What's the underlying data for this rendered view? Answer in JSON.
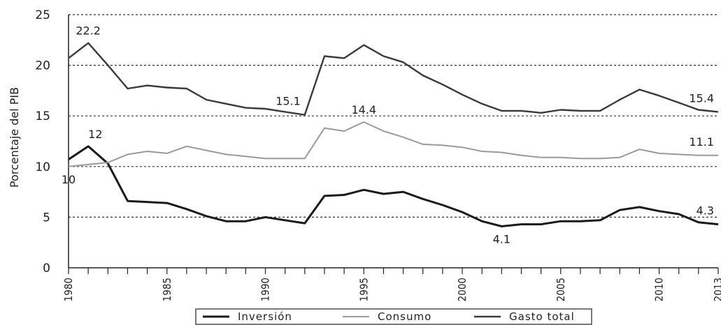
{
  "chart_data": {
    "type": "line",
    "xlabel": "",
    "ylabel": "Porcentaje del PIB",
    "ylim": [
      0,
      25
    ],
    "xlim": [
      1980,
      2013
    ],
    "yticks": [
      0,
      5,
      10,
      15,
      20,
      25
    ],
    "xticks": [
      1980,
      1985,
      1990,
      1995,
      2000,
      2005,
      2010,
      2013
    ],
    "grid": "horizontal dashed",
    "legend_position": "bottom",
    "x": [
      1980,
      1981,
      1982,
      1983,
      1984,
      1985,
      1986,
      1987,
      1988,
      1989,
      1990,
      1991,
      1992,
      1993,
      1994,
      1995,
      1996,
      1997,
      1998,
      1999,
      2000,
      2001,
      2002,
      2003,
      2004,
      2005,
      2006,
      2007,
      2008,
      2009,
      2010,
      2011,
      2012,
      2013
    ],
    "series": [
      {
        "name": "Inversión",
        "color": "#1a1a1a",
        "values": [
          10.7,
          12.0,
          10.3,
          6.6,
          6.5,
          6.4,
          5.8,
          5.1,
          4.6,
          4.6,
          5.0,
          4.7,
          4.4,
          7.1,
          7.2,
          7.7,
          7.3,
          7.5,
          6.8,
          6.2,
          5.5,
          4.6,
          4.1,
          4.3,
          4.3,
          4.6,
          4.6,
          4.7,
          5.7,
          6.0,
          5.6,
          5.3,
          4.5,
          4.3
        ]
      },
      {
        "name": "Consumo",
        "color": "#9a9a9a",
        "values": [
          10.0,
          10.2,
          10.4,
          11.2,
          11.5,
          11.3,
          12.0,
          11.6,
          11.2,
          11.0,
          10.8,
          10.8,
          10.8,
          13.8,
          13.5,
          14.4,
          13.5,
          12.9,
          12.2,
          12.1,
          11.9,
          11.5,
          11.4,
          11.1,
          10.9,
          10.9,
          10.8,
          10.8,
          10.9,
          11.7,
          11.3,
          11.2,
          11.1,
          11.1
        ]
      },
      {
        "name": "Gasto total",
        "color": "#3a3a3a",
        "values": [
          20.7,
          22.2,
          20.0,
          17.7,
          18.0,
          17.8,
          17.7,
          16.6,
          16.2,
          15.8,
          15.7,
          15.4,
          15.1,
          20.9,
          20.7,
          22.0,
          20.9,
          20.3,
          19.0,
          18.1,
          17.1,
          16.2,
          15.5,
          15.5,
          15.3,
          15.6,
          15.5,
          15.5,
          16.6,
          17.6,
          17.0,
          16.3,
          15.6,
          15.4
        ]
      }
    ],
    "annotations": [
      {
        "text": "22.2",
        "series": 2,
        "index": 1,
        "pos": "above"
      },
      {
        "text": "15.1",
        "series": 2,
        "index": 12,
        "pos": "above-left"
      },
      {
        "text": "15.4",
        "series": 2,
        "index": 33,
        "pos": "above-left"
      },
      {
        "text": "14.4",
        "series": 1,
        "index": 15,
        "pos": "above"
      },
      {
        "text": "11.1",
        "series": 1,
        "index": 33,
        "pos": "above-left"
      },
      {
        "text": "10",
        "series": 1,
        "index": 0,
        "pos": "below"
      },
      {
        "text": "12",
        "series": 0,
        "index": 1,
        "pos": "above-right"
      },
      {
        "text": "4.1",
        "series": 0,
        "index": 22,
        "pos": "below"
      },
      {
        "text": "4.3",
        "series": 0,
        "index": 33,
        "pos": "above-left"
      }
    ]
  }
}
